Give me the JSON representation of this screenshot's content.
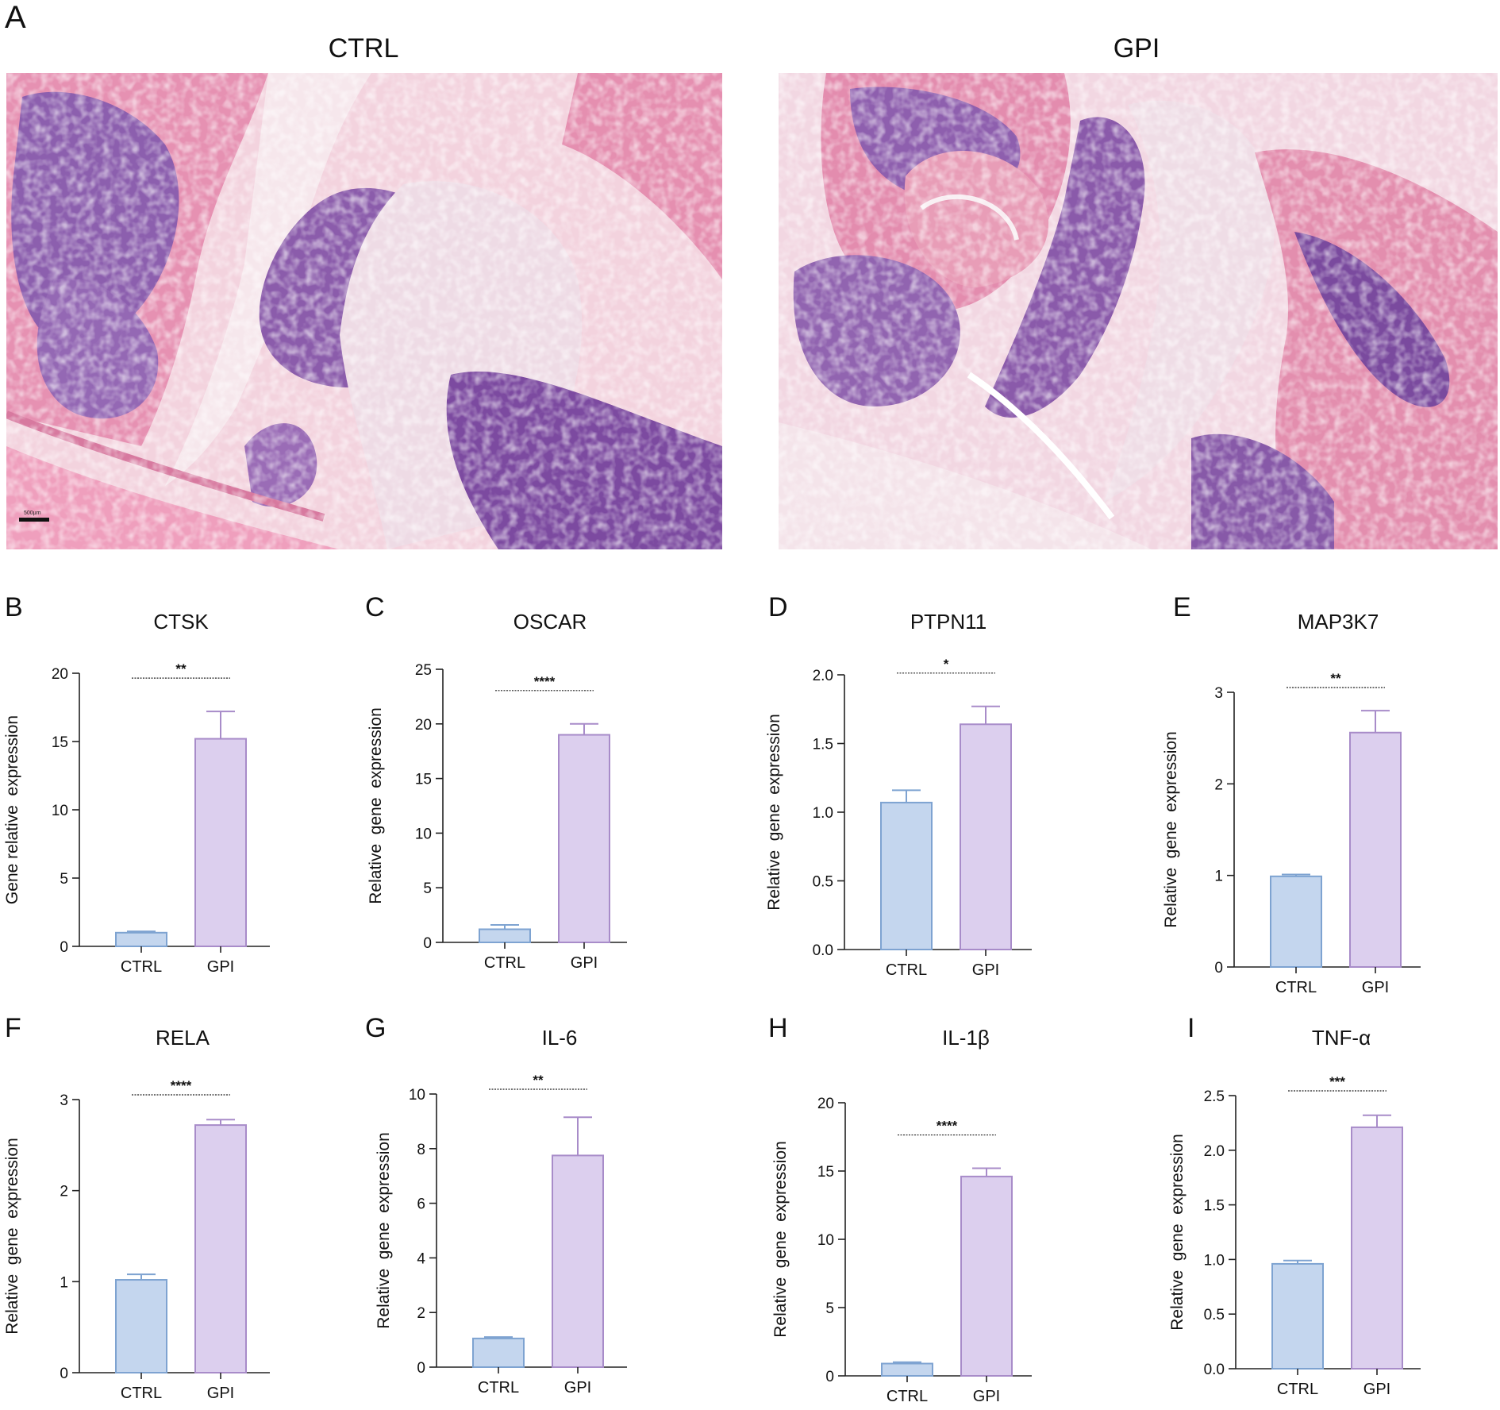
{
  "panel_a": {
    "letter": "A",
    "groups": [
      {
        "title": "CTRL"
      },
      {
        "title": "GPI"
      }
    ],
    "scale_bar_label": "500μm"
  },
  "colors": {
    "ctrl_fill": "#c4d6ee",
    "ctrl_stroke": "#7ea3d1",
    "gpi_fill": "#dccfee",
    "gpi_stroke": "#a88cc9",
    "tissue_pink": "#ea9cb8",
    "tissue_purple": "#8a5aa8"
  },
  "chart_data": [
    {
      "panel": "B",
      "type": "bar",
      "title": "CTSK",
      "ylabel": "Gene relative  expression",
      "categories": [
        "CTRL",
        "GPI"
      ],
      "values": [
        1.0,
        15.2
      ],
      "errors": [
        0.1,
        2.0
      ],
      "ylim": [
        0,
        20
      ],
      "yticks": [
        "0",
        "5",
        "10",
        "15",
        "20"
      ],
      "significance": "**"
    },
    {
      "panel": "C",
      "type": "bar",
      "title": "OSCAR",
      "ylabel": "Relative  gene  expression",
      "categories": [
        "CTRL",
        "GPI"
      ],
      "values": [
        1.2,
        19.0
      ],
      "errors": [
        0.4,
        1.0
      ],
      "ylim": [
        0,
        25
      ],
      "yticks": [
        "0",
        "5",
        "10",
        "15",
        "20",
        "25"
      ],
      "significance": "****"
    },
    {
      "panel": "D",
      "type": "bar",
      "title": "PTPN11",
      "ylabel": "Relative  gene  expression",
      "categories": [
        "CTRL",
        "GPI"
      ],
      "values": [
        1.07,
        1.64
      ],
      "errors": [
        0.09,
        0.13
      ],
      "ylim": [
        0,
        2.0
      ],
      "yticks": [
        "0.0",
        "0.5",
        "1.0",
        "1.5",
        "2.0"
      ],
      "significance": "*"
    },
    {
      "panel": "E",
      "type": "bar",
      "title": "MAP3K7",
      "ylabel": "Relative  gene  expression",
      "categories": [
        "CTRL",
        "GPI"
      ],
      "values": [
        0.99,
        2.56
      ],
      "errors": [
        0.02,
        0.24
      ],
      "ylim": [
        0,
        3
      ],
      "yticks": [
        "0",
        "1",
        "2",
        "3"
      ],
      "significance": "**"
    },
    {
      "panel": "F",
      "type": "bar",
      "title": "RELA",
      "ylabel": "Relative  gene  expression",
      "categories": [
        "CTRL",
        "GPI"
      ],
      "values": [
        1.02,
        2.72
      ],
      "errors": [
        0.06,
        0.06
      ],
      "ylim": [
        0,
        3
      ],
      "yticks": [
        "0",
        "1",
        "2",
        "3"
      ],
      "significance": "****"
    },
    {
      "panel": "G",
      "type": "bar",
      "title": "IL-6",
      "ylabel": "Relative  gene  expression",
      "categories": [
        "CTRL",
        "GPI"
      ],
      "values": [
        1.05,
        7.75
      ],
      "errors": [
        0.05,
        1.4
      ],
      "ylim": [
        0,
        10
      ],
      "yticks": [
        "0",
        "2",
        "4",
        "6",
        "8",
        "10"
      ],
      "significance": "**"
    },
    {
      "panel": "H",
      "type": "bar",
      "title": "IL-1β",
      "ylabel": "Relative  gene  expression",
      "categories": [
        "CTRL",
        "GPI"
      ],
      "values": [
        0.9,
        14.6
      ],
      "errors": [
        0.1,
        0.6
      ],
      "ylim": [
        0,
        20
      ],
      "yticks": [
        "0",
        "5",
        "10",
        "15",
        "20"
      ],
      "significance": "****"
    },
    {
      "panel": "I",
      "type": "bar",
      "title": "TNF-α",
      "ylabel": "Relative  gene  expression",
      "categories": [
        "CTRL",
        "GPI"
      ],
      "values": [
        0.96,
        2.21
      ],
      "errors": [
        0.03,
        0.11
      ],
      "ylim": [
        0,
        2.5
      ],
      "yticks": [
        "0.0",
        "0.5",
        "1.0",
        "1.5",
        "2.0",
        "2.5"
      ],
      "significance": "***"
    }
  ]
}
